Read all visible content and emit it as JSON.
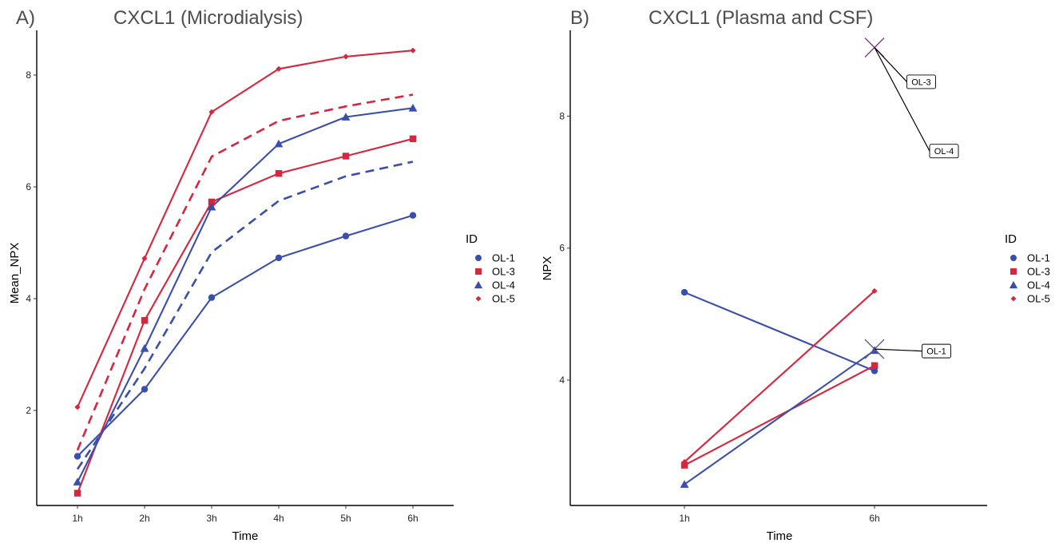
{
  "colors": {
    "OL-1": "#3a4ead",
    "OL-3": "#d7263d",
    "OL-4": "#3a4ead",
    "OL-5": "#d7263d"
  },
  "chart_data": [
    {
      "type": "line",
      "tag": "A)",
      "title": "CXCL1 (Microdialysis)",
      "xlabel": "Time",
      "ylabel": "Mean_NPX",
      "categories": [
        "1h",
        "2h",
        "3h",
        "4h",
        "5h",
        "6h"
      ],
      "ylim": [
        0.3,
        8.8
      ],
      "yticks": [
        2,
        4,
        6,
        8
      ],
      "grid": false,
      "legend": {
        "title": "ID",
        "position": "right"
      },
      "series": [
        {
          "name": "OL-1",
          "color": "#3a4ead",
          "marker": "circle",
          "values": [
            1.18,
            2.38,
            4.02,
            4.73,
            5.12,
            5.49
          ]
        },
        {
          "name": "OL-3",
          "color": "#d7263d",
          "marker": "square",
          "values": [
            0.52,
            3.61,
            5.73,
            6.24,
            6.55,
            6.86
          ]
        },
        {
          "name": "OL-4",
          "color": "#3a4ead",
          "marker": "triangle",
          "values": [
            0.72,
            3.11,
            5.64,
            6.77,
            7.25,
            7.41
          ]
        },
        {
          "name": "OL-5",
          "color": "#d7263d",
          "marker": "diamond",
          "values": [
            2.06,
            4.72,
            7.34,
            8.11,
            8.33,
            8.44
          ]
        },
        {
          "color": "#3a4ead",
          "dashed": true,
          "values": [
            0.95,
            2.75,
            4.83,
            5.75,
            6.19,
            6.45
          ]
        },
        {
          "color": "#d7263d",
          "dashed": true,
          "values": [
            1.29,
            4.17,
            6.54,
            7.18,
            7.44,
            7.65
          ]
        }
      ]
    },
    {
      "type": "line",
      "tag": "B)",
      "title": "CXCL1 (Plasma and CSF)",
      "xlabel": "Time",
      "ylabel": "NPX",
      "categories": [
        "1h",
        "6h"
      ],
      "ylim": [
        2.1,
        9.3
      ],
      "yticks": [
        4,
        6,
        8
      ],
      "grid": false,
      "legend": {
        "title": "ID",
        "position": "right"
      },
      "series": [
        {
          "name": "OL-1",
          "color": "#3a4ead",
          "marker": "circle",
          "values": [
            5.33,
            4.14
          ]
        },
        {
          "name": "OL-3",
          "color": "#d7263d",
          "marker": "square",
          "values": [
            2.71,
            4.22
          ]
        },
        {
          "name": "OL-4",
          "color": "#3a4ead",
          "marker": "triangle",
          "values": [
            2.42,
            4.45
          ]
        },
        {
          "name": "OL-5",
          "color": "#d7263d",
          "marker": "diamond",
          "values": [
            2.76,
            5.35
          ]
        }
      ],
      "crosses": [
        {
          "x": "6h",
          "y": 9.04,
          "color": "#7b3a86"
        },
        {
          "x": "6h",
          "y": 4.47,
          "color": "#5a5a8a"
        }
      ],
      "annotations": [
        {
          "text": "OL-3",
          "x": "6h",
          "y": 9.04,
          "label_dx": 0.17,
          "label_y": 8.52
        },
        {
          "text": "OL-4",
          "x": "6h",
          "y": 9.04,
          "label_dx": 0.29,
          "label_y": 7.47
        },
        {
          "text": "OL-1",
          "x": "6h",
          "y": 4.47,
          "label_dx": 0.25,
          "label_y": 4.44
        }
      ]
    }
  ]
}
